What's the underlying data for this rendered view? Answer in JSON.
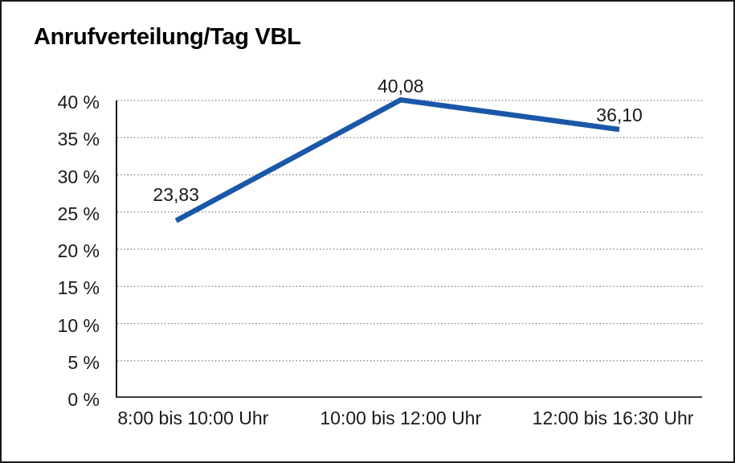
{
  "chart_data": {
    "type": "line",
    "title": "Anrufverteilung/Tag VBL",
    "categories": [
      "8:00 bis 10:00 Uhr",
      "10:00 bis 12:00 Uhr",
      "12:00 bis 16:30 Uhr"
    ],
    "values": [
      23.83,
      40.08,
      36.1
    ],
    "point_labels": [
      "23,83",
      "40,08",
      "36,10"
    ],
    "ytick_labels": [
      "0 %",
      "5 %",
      "10 %",
      "15 %",
      "20 %",
      "25 %",
      "30 %",
      "35 %",
      "40 %"
    ],
    "ytick_values": [
      0,
      5,
      10,
      15,
      20,
      25,
      30,
      35,
      40
    ],
    "ylim": [
      0,
      40
    ],
    "xlabel": "",
    "ylabel": "",
    "grid": true,
    "gridline_style": "dotted",
    "legend_position": "none",
    "colors": {
      "line": "#1a57a8",
      "gridline": "#777777",
      "axis": "#1a1a1a",
      "text": "#1a1a1a",
      "background": "#ffffff",
      "border": "#1a1a1a"
    }
  }
}
